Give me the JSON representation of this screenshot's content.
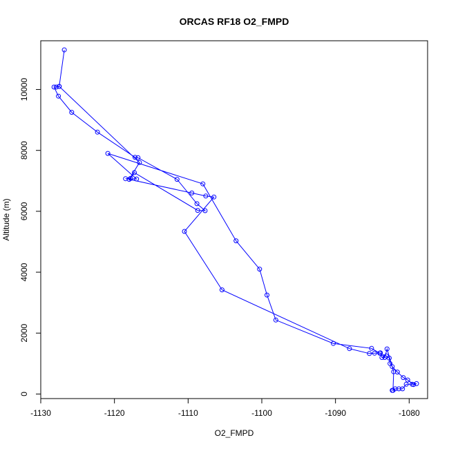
{
  "chart_data": {
    "type": "line",
    "title": "ORCAS RF18 O2_FMPD",
    "xlabel": "O2_FMPD",
    "ylabel": "Altitude (m)",
    "xlim": [
      -1130,
      -1077.5
    ],
    "ylim": [
      -150,
      11600
    ],
    "xticks": [
      -1130,
      -1120,
      -1110,
      -1100,
      -1090,
      -1080
    ],
    "yticks": [
      0,
      2000,
      4000,
      6000,
      8000,
      10000
    ],
    "grid": false,
    "legend": "none",
    "series_color": "#0000ff",
    "markers": "open-circle",
    "x": [
      -1126.8,
      -1127.5,
      -1127.9,
      -1128.2,
      -1127.6,
      -1125.8,
      -1122.3,
      -1117.2,
      -1116.8,
      -1111.5,
      -1108.8,
      -1107.7,
      -1108.7,
      -1117.3,
      -1117.8,
      -1118.5,
      -1117.0,
      -1120.9,
      -1108.0,
      -1103.5,
      -1100.3,
      -1099.3,
      -1098.1,
      -1090.3,
      -1085.1,
      -1084.0,
      -1083.1,
      -1082.7,
      -1082.6,
      -1082.3,
      -1081.6,
      -1080.8,
      -1080.2,
      -1079.4,
      -1079.0,
      -1079.6,
      -1080.4,
      -1080.9,
      -1081.4,
      -1081.9,
      -1082.3,
      -1082.2,
      -1082.1,
      -1083.0,
      -1083.3,
      -1083.7,
      -1083.9,
      -1084.7,
      -1085.4,
      -1088.1,
      -1105.4,
      -1110.5,
      -1106.5,
      -1107.6,
      -1109.5,
      -1118.0,
      -1116.6,
      -1127.5
    ],
    "y": [
      11300,
      10100,
      10080,
      10080,
      9780,
      9250,
      8600,
      7770,
      7760,
      7050,
      6250,
      6020,
      6030,
      7270,
      7080,
      7070,
      7060,
      7900,
      6900,
      5030,
      4100,
      3250,
      2430,
      1660,
      1500,
      1340,
      1250,
      1180,
      1000,
      900,
      720,
      540,
      460,
      310,
      340,
      320,
      320,
      170,
      170,
      170,
      120,
      120,
      730,
      1480,
      1200,
      1200,
      1350,
      1340,
      1330,
      1490,
      3420,
      5340,
      6470,
      6500,
      6600,
      7050,
      7600,
      10100
    ]
  }
}
